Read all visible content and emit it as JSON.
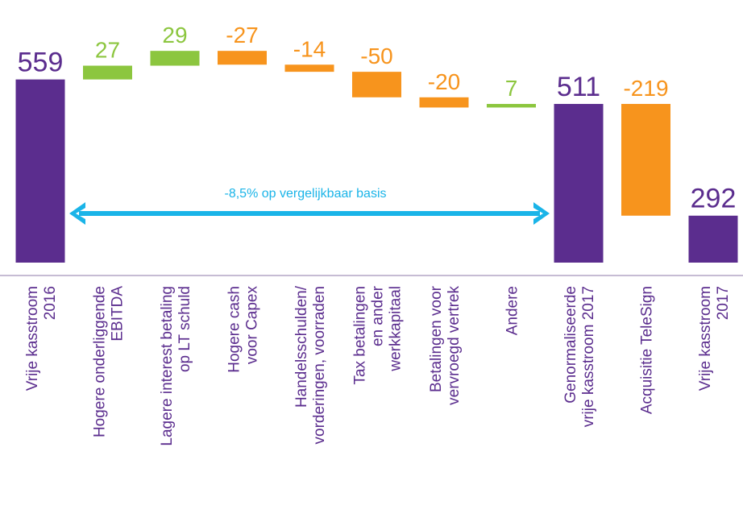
{
  "chart_data": {
    "type": "waterfall",
    "categories": [
      "Vrije kasstroom\n2016",
      "Hogere onderliggende\nEBITDA",
      "Lagere interest betaling\nop LT schuld",
      "Hogere cash\nvoor Capex",
      "Handelsschulden/\nvorderingen, voorraden",
      "Tax betalingen\nen ander\nwerkkapitaal",
      "Betalingen voor\nvervroegd vertrek",
      "Andere",
      "Genormaliseerde\nvrije kasstroom 2017",
      "Acquisitie TeleSign",
      "Vrije kasstroom\n2017"
    ],
    "values": [
      559,
      27,
      29,
      -27,
      -14,
      -50,
      -20,
      7,
      511,
      -219,
      292
    ],
    "measure": [
      "total",
      "relative",
      "relative",
      "relative",
      "relative",
      "relative",
      "relative",
      "relative",
      "total",
      "relative",
      "total"
    ],
    "colors": {
      "total": "#5b2d8e",
      "increase": "#8cc63f",
      "decrease": "#f7941d"
    },
    "ylim": [
      200,
      650
    ],
    "annotation": "-8,5% op vergelijkbaar basis",
    "annotation_color": "#1ab4e8"
  }
}
